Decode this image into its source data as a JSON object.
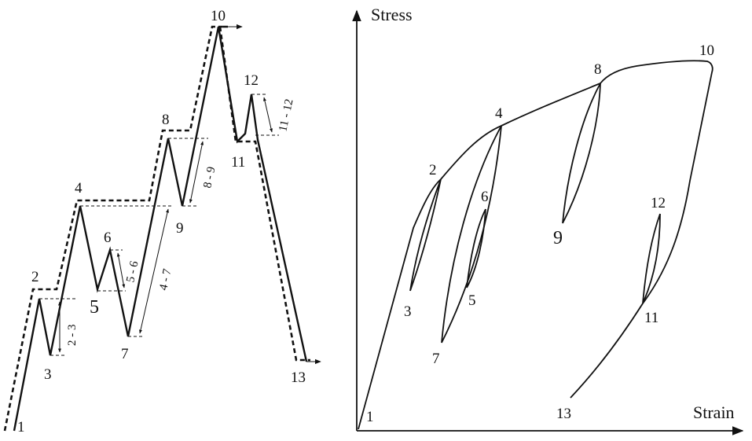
{
  "left_diagram": {
    "point_labels": [
      "1",
      "2",
      "3",
      "4",
      "5",
      "6",
      "7",
      "8",
      "9",
      "10",
      "11",
      "12",
      "13"
    ],
    "range_labels": [
      "2 - 3",
      "5 - 6",
      "4 - 7",
      "8 - 9",
      "11 - 12"
    ]
  },
  "right_diagram": {
    "y_axis_label": "Stress",
    "x_axis_label": "Strain",
    "point_labels": [
      "1",
      "2",
      "3",
      "4",
      "5",
      "6",
      "7",
      "8",
      "9",
      "10",
      "11",
      "12",
      "13"
    ]
  }
}
